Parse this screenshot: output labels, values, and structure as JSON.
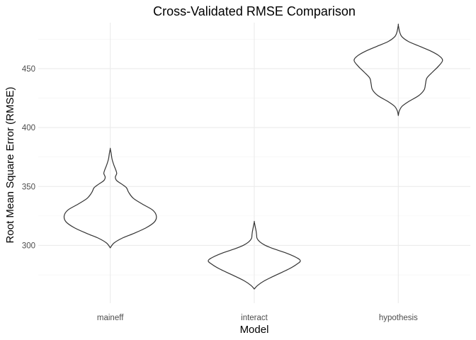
{
  "chart_data": {
    "type": "violin",
    "title": "Cross-Validated RMSE Comparison",
    "xlabel": "Model",
    "ylabel": "Root Mean Square Error (RMSE)",
    "categories": [
      "maineff",
      "interact",
      "hypothesis"
    ],
    "ylim": [
      251,
      489
    ],
    "yticks": [
      300,
      350,
      400,
      450
    ],
    "grid": true,
    "violins": [
      {
        "name": "maineff",
        "min": 298,
        "max": 382,
        "profile": [
          [
            298,
            0.0
          ],
          [
            302,
            0.08
          ],
          [
            306,
            0.25
          ],
          [
            310,
            0.5
          ],
          [
            315,
            0.78
          ],
          [
            320,
            0.96
          ],
          [
            325,
            1.0
          ],
          [
            330,
            0.92
          ],
          [
            335,
            0.7
          ],
          [
            340,
            0.5
          ],
          [
            345,
            0.4
          ],
          [
            349,
            0.35
          ],
          [
            352,
            0.25
          ],
          [
            355,
            0.14
          ],
          [
            358,
            0.11
          ],
          [
            361,
            0.14
          ],
          [
            364,
            0.12
          ],
          [
            368,
            0.08
          ],
          [
            373,
            0.04
          ],
          [
            378,
            0.02
          ],
          [
            382,
            0.0
          ]
        ]
      },
      {
        "name": "interact",
        "min": 263,
        "max": 320,
        "profile": [
          [
            263,
            0.0
          ],
          [
            266,
            0.07
          ],
          [
            270,
            0.22
          ],
          [
            275,
            0.48
          ],
          [
            280,
            0.75
          ],
          [
            284,
            0.92
          ],
          [
            287,
            1.0
          ],
          [
            290,
            0.9
          ],
          [
            294,
            0.66
          ],
          [
            297,
            0.43
          ],
          [
            300,
            0.24
          ],
          [
            303,
            0.12
          ],
          [
            306,
            0.06
          ],
          [
            309,
            0.05
          ],
          [
            312,
            0.04
          ],
          [
            316,
            0.02
          ],
          [
            320,
            0.0
          ]
        ]
      },
      {
        "name": "hypothesis",
        "min": 410,
        "max": 487,
        "profile": [
          [
            410,
            0.0
          ],
          [
            414,
            0.02
          ],
          [
            418,
            0.08
          ],
          [
            422,
            0.22
          ],
          [
            427,
            0.44
          ],
          [
            432,
            0.56
          ],
          [
            437,
            0.59
          ],
          [
            442,
            0.62
          ],
          [
            447,
            0.74
          ],
          [
            452,
            0.87
          ],
          [
            457,
            0.96
          ],
          [
            461,
            0.88
          ],
          [
            465,
            0.7
          ],
          [
            469,
            0.46
          ],
          [
            473,
            0.22
          ],
          [
            477,
            0.08
          ],
          [
            481,
            0.03
          ],
          [
            487,
            0.0
          ]
        ]
      }
    ]
  }
}
